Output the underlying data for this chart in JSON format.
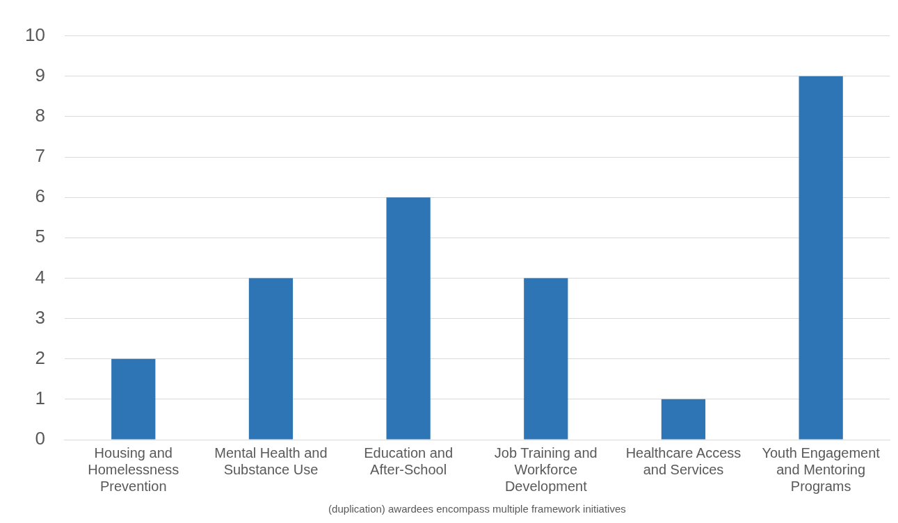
{
  "chart_data": {
    "type": "bar",
    "categories": [
      "Housing and Homelessness Prevention",
      "Mental Health and Substance Use",
      "Education and After-School",
      "Job Training and Workforce Development",
      "Healthcare Access and Services",
      "Youth Engagement and Mentoring Programs"
    ],
    "values": [
      2,
      4,
      6,
      4,
      1,
      9
    ],
    "color": "#2e75b6",
    "ylim": [
      0,
      10
    ],
    "yticks": [
      0,
      1,
      2,
      3,
      4,
      5,
      6,
      7,
      8,
      9,
      10
    ],
    "grid": "y",
    "legend": false,
    "annotations": [
      "(duplication) awardees encompass multiple framework initiatives"
    ]
  }
}
